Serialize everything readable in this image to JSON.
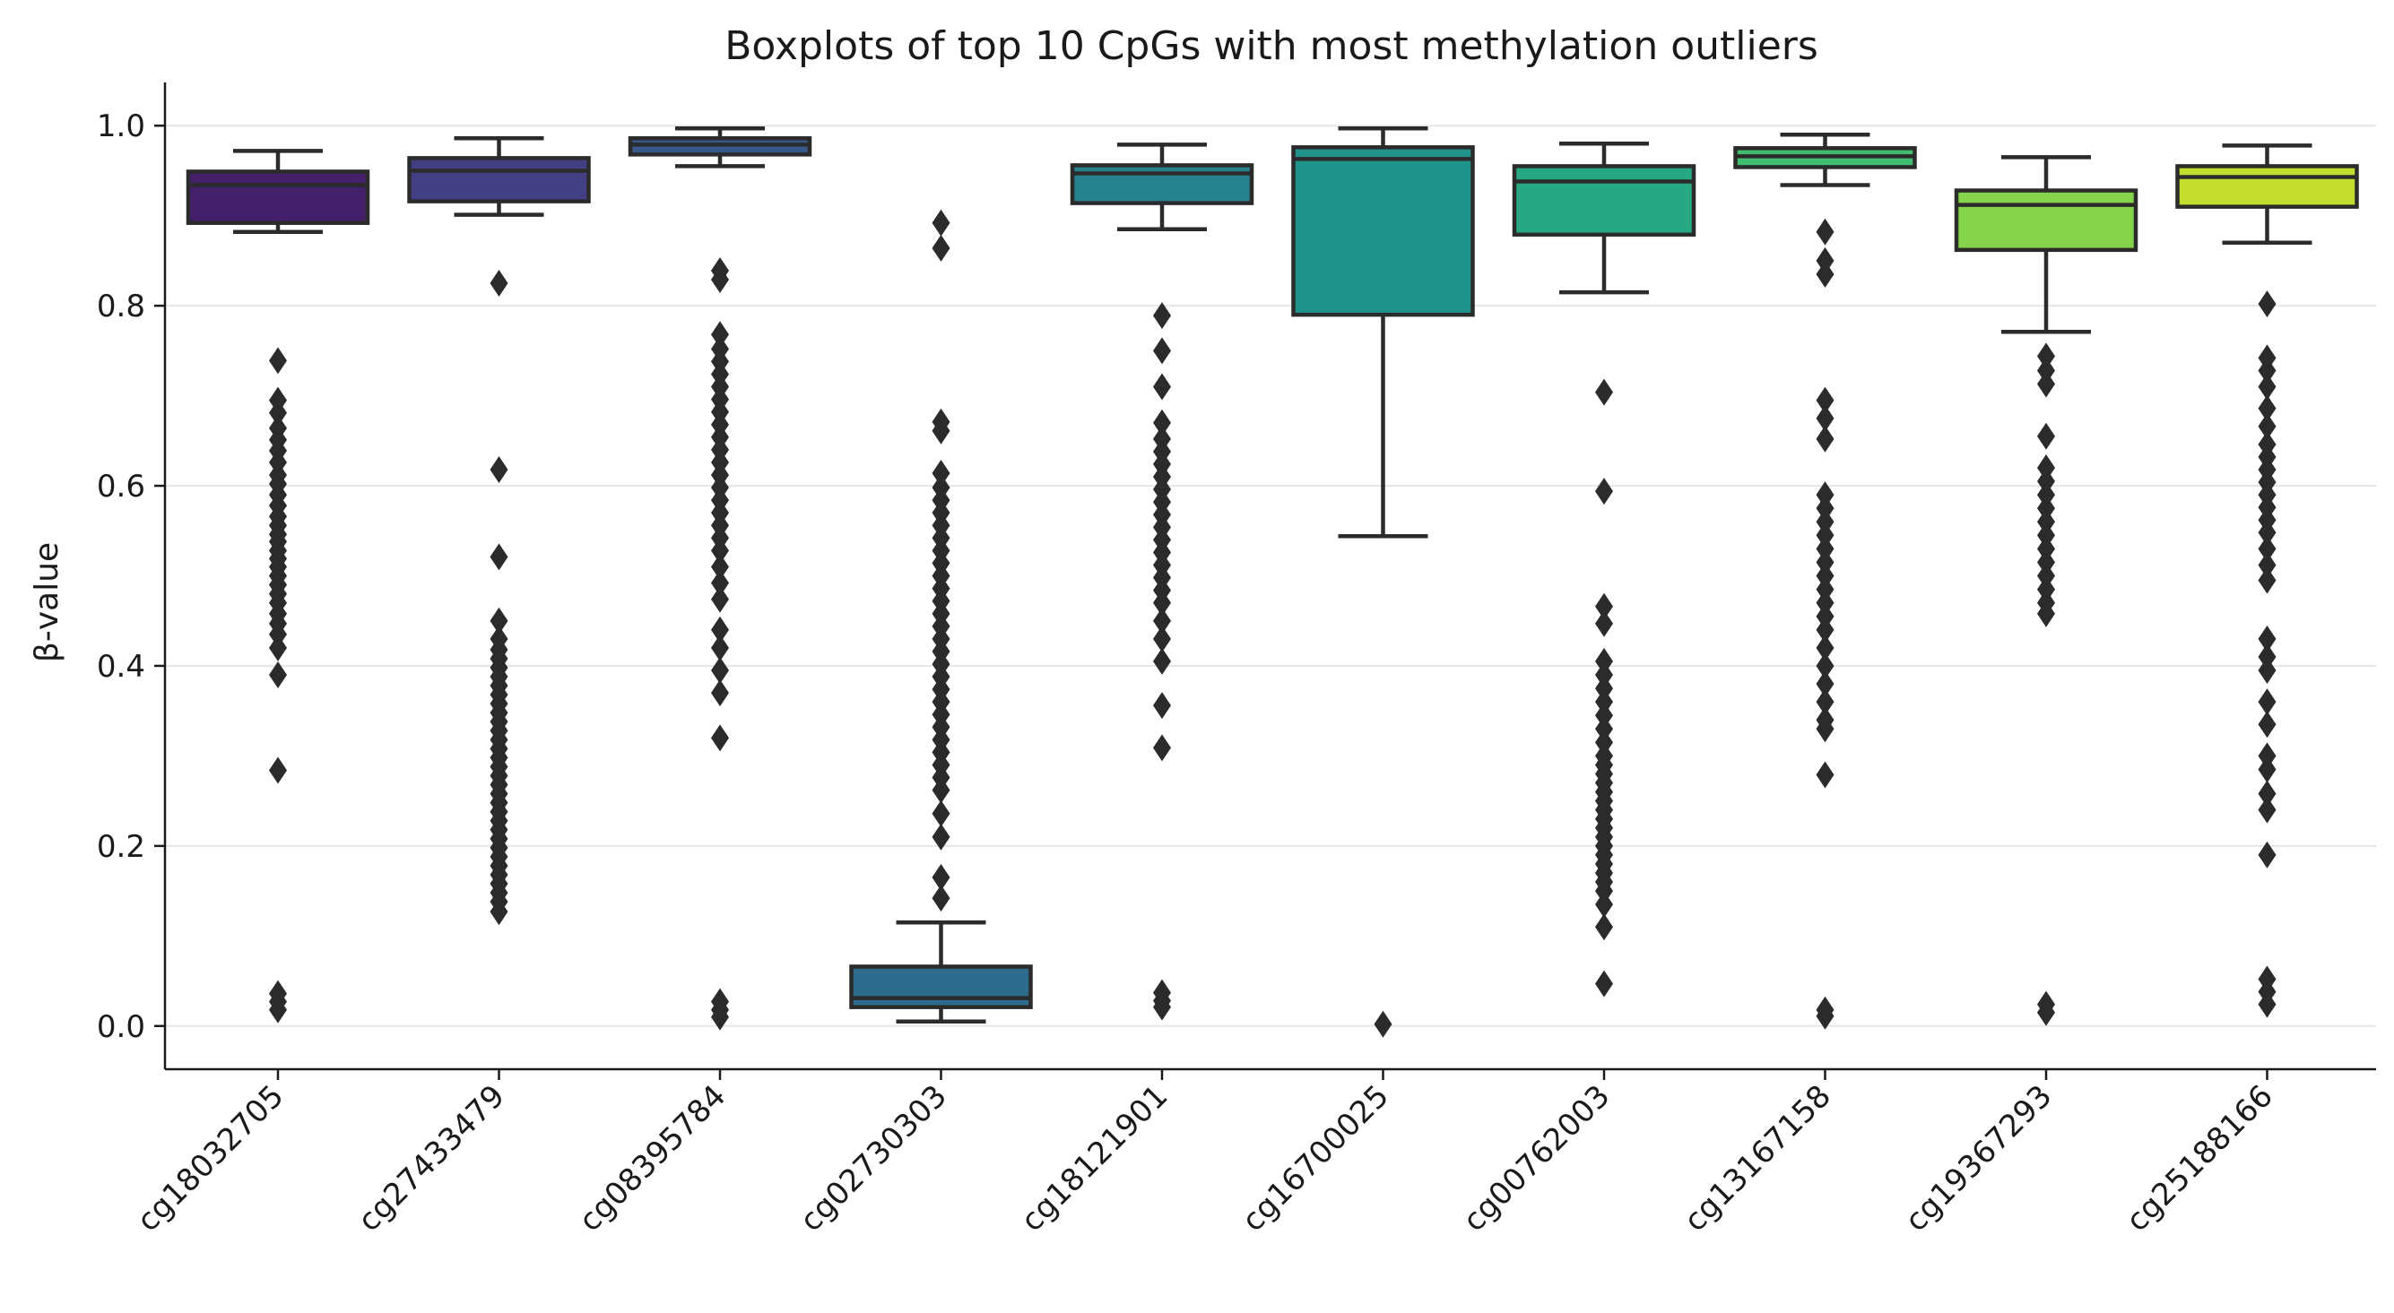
{
  "chart_data": {
    "type": "box",
    "title": "Boxplots of top 10 CpGs with most methylation outliers",
    "xlabel": "",
    "ylabel": "β-value",
    "ylim": [
      -0.048,
      1.048
    ],
    "yticks": [
      0.0,
      0.2,
      0.4,
      0.6,
      0.8,
      1.0
    ],
    "ytick_labels": [
      "0.0",
      "0.2",
      "0.4",
      "0.6",
      "0.8",
      "1.0"
    ],
    "grid": "horizontal",
    "categories": [
      "cg18032705",
      "cg27433479",
      "cg08395784",
      "cg02730303",
      "cg18121901",
      "cg16700025",
      "cg00762003",
      "cg13167158",
      "cg19367293",
      "cg25188166"
    ],
    "colors": [
      "#45206a",
      "#433f84",
      "#38588c",
      "#2e6c8e",
      "#26818e",
      "#20948b",
      "#26a983",
      "#42be70",
      "#86d449",
      "#c3dd2c"
    ],
    "boxes": [
      {
        "whisker_low": 0.882,
        "q1": 0.892,
        "median": 0.934,
        "q3": 0.949,
        "whisker_high": 0.972,
        "outliers": [
          0.739,
          0.695,
          0.681,
          0.664,
          0.651,
          0.639,
          0.626,
          0.612,
          0.602,
          0.59,
          0.578,
          0.566,
          0.556,
          0.546,
          0.538,
          0.528,
          0.519,
          0.51,
          0.5,
          0.49,
          0.48,
          0.47,
          0.458,
          0.447,
          0.435,
          0.42,
          0.39,
          0.284,
          0.036,
          0.027,
          0.018
        ]
      },
      {
        "whisker_low": 0.901,
        "q1": 0.916,
        "median": 0.95,
        "q3": 0.964,
        "whisker_high": 0.986,
        "outliers": [
          0.825,
          0.618,
          0.521,
          0.45,
          0.43,
          0.418,
          0.408,
          0.398,
          0.388,
          0.378,
          0.368,
          0.358,
          0.348,
          0.338,
          0.328,
          0.318,
          0.308,
          0.298,
          0.288,
          0.278,
          0.268,
          0.258,
          0.248,
          0.238,
          0.228,
          0.218,
          0.208,
          0.198,
          0.188,
          0.178,
          0.168,
          0.158,
          0.148,
          0.138,
          0.127
        ]
      },
      {
        "whisker_low": 0.955,
        "q1": 0.968,
        "median": 0.979,
        "q3": 0.986,
        "whisker_high": 0.997,
        "outliers": [
          0.839,
          0.829,
          0.768,
          0.752,
          0.738,
          0.724,
          0.71,
          0.696,
          0.682,
          0.668,
          0.654,
          0.64,
          0.626,
          0.612,
          0.598,
          0.584,
          0.57,
          0.556,
          0.542,
          0.528,
          0.51,
          0.492,
          0.474,
          0.44,
          0.42,
          0.395,
          0.37,
          0.32,
          0.027,
          0.018,
          0.01
        ]
      },
      {
        "whisker_low": 0.005,
        "q1": 0.021,
        "median": 0.031,
        "q3": 0.066,
        "whisker_high": 0.115,
        "outliers": [
          0.892,
          0.864,
          0.671,
          0.661,
          0.614,
          0.598,
          0.584,
          0.57,
          0.556,
          0.542,
          0.528,
          0.514,
          0.5,
          0.486,
          0.472,
          0.458,
          0.444,
          0.43,
          0.416,
          0.402,
          0.388,
          0.374,
          0.36,
          0.346,
          0.332,
          0.318,
          0.304,
          0.29,
          0.276,
          0.262,
          0.236,
          0.21,
          0.165,
          0.142
        ]
      },
      {
        "whisker_low": 0.885,
        "q1": 0.914,
        "median": 0.947,
        "q3": 0.956,
        "whisker_high": 0.979,
        "outliers": [
          0.789,
          0.75,
          0.71,
          0.67,
          0.652,
          0.638,
          0.624,
          0.61,
          0.596,
          0.582,
          0.568,
          0.554,
          0.54,
          0.526,
          0.512,
          0.498,
          0.484,
          0.47,
          0.45,
          0.43,
          0.405,
          0.356,
          0.309,
          0.037,
          0.028,
          0.021
        ]
      },
      {
        "whisker_low": 0.544,
        "q1": 0.79,
        "median": 0.963,
        "q3": 0.976,
        "whisker_high": 0.997,
        "outliers": [
          0.002
        ]
      },
      {
        "whisker_low": 0.815,
        "q1": 0.879,
        "median": 0.938,
        "q3": 0.955,
        "whisker_high": 0.98,
        "outliers": [
          0.704,
          0.594,
          0.466,
          0.447,
          0.405,
          0.39,
          0.375,
          0.36,
          0.345,
          0.33,
          0.315,
          0.3,
          0.29,
          0.28,
          0.27,
          0.26,
          0.25,
          0.24,
          0.23,
          0.22,
          0.21,
          0.2,
          0.19,
          0.18,
          0.17,
          0.16,
          0.15,
          0.135,
          0.11,
          0.047
        ]
      },
      {
        "whisker_low": 0.934,
        "q1": 0.954,
        "median": 0.966,
        "q3": 0.975,
        "whisker_high": 0.99,
        "outliers": [
          0.882,
          0.85,
          0.835,
          0.695,
          0.675,
          0.652,
          0.59,
          0.575,
          0.56,
          0.545,
          0.53,
          0.515,
          0.5,
          0.485,
          0.47,
          0.455,
          0.44,
          0.42,
          0.4,
          0.38,
          0.36,
          0.34,
          0.33,
          0.279,
          0.018,
          0.011
        ]
      },
      {
        "whisker_low": 0.771,
        "q1": 0.862,
        "median": 0.912,
        "q3": 0.928,
        "whisker_high": 0.965,
        "outliers": [
          0.744,
          0.728,
          0.713,
          0.655,
          0.62,
          0.605,
          0.59,
          0.575,
          0.56,
          0.545,
          0.53,
          0.515,
          0.5,
          0.485,
          0.47,
          0.458,
          0.024,
          0.015
        ]
      },
      {
        "whisker_low": 0.87,
        "q1": 0.91,
        "median": 0.943,
        "q3": 0.955,
        "whisker_high": 0.978,
        "outliers": [
          0.802,
          0.742,
          0.728,
          0.71,
          0.686,
          0.666,
          0.646,
          0.632,
          0.618,
          0.604,
          0.59,
          0.576,
          0.562,
          0.548,
          0.53,
          0.512,
          0.495,
          0.43,
          0.41,
          0.395,
          0.36,
          0.335,
          0.3,
          0.285,
          0.258,
          0.24,
          0.19,
          0.052,
          0.038,
          0.024
        ]
      }
    ]
  }
}
